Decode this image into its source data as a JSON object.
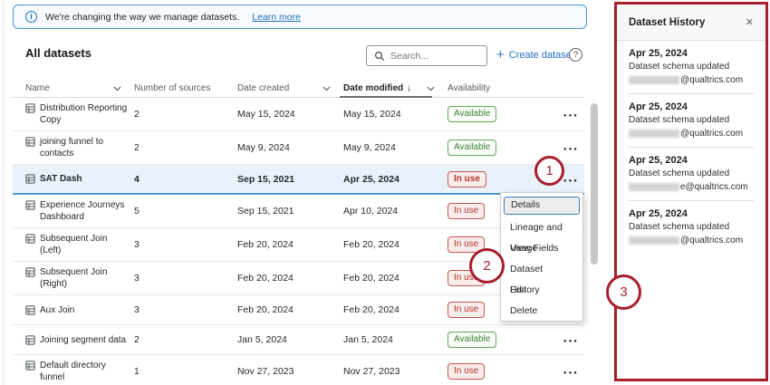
{
  "banner": {
    "message": "We're changing the way we manage datasets.",
    "link_label": "Learn more"
  },
  "toolbar": {
    "title": "All datasets",
    "search_placeholder": "Search...",
    "create_label": "Create dataset",
    "help_label": "?"
  },
  "table": {
    "columns": {
      "name": "Name",
      "sources": "Number of sources",
      "created": "Date created",
      "modified": "Date modified",
      "availability": "Availability"
    },
    "sort_arrow": "↓",
    "rows": [
      {
        "name": "Distribution Reporting Copy",
        "sources": "2",
        "created": "May 15, 2024",
        "modified": "May 15, 2024",
        "availability": "Available",
        "selected": false
      },
      {
        "name": "joining funnel to contacts",
        "sources": "2",
        "created": "May 9, 2024",
        "modified": "May 9, 2024",
        "availability": "Available",
        "selected": false
      },
      {
        "name": "SAT Dash",
        "sources": "4",
        "created": "Sep 15, 2021",
        "modified": "Apr 25, 2024",
        "availability": "In use",
        "selected": true
      },
      {
        "name": "Experience Journeys Dashboard",
        "sources": "5",
        "created": "Sep 15, 2021",
        "modified": "Apr 10, 2024",
        "availability": "In use",
        "selected": false
      },
      {
        "name": "Subsequent Join (Left)",
        "sources": "3",
        "created": "Feb 20, 2024",
        "modified": "Feb 20, 2024",
        "availability": "In use",
        "selected": false
      },
      {
        "name": "Subsequent Join (Right)",
        "sources": "3",
        "created": "Feb 20, 2024",
        "modified": "Feb 20, 2024",
        "availability": "In use",
        "selected": false
      },
      {
        "name": "Aux Join",
        "sources": "3",
        "created": "Feb 20, 2024",
        "modified": "Feb 20, 2024",
        "availability": "In use",
        "selected": false
      },
      {
        "name": "Joining segment data",
        "sources": "2",
        "created": "Jan 5, 2024",
        "modified": "Jan 5, 2024",
        "availability": "Available",
        "selected": false
      },
      {
        "name": "Default directory funnel",
        "sources": "1",
        "created": "Nov 27, 2023",
        "modified": "Nov 27, 2023",
        "availability": "In use",
        "selected": false
      }
    ]
  },
  "row_menu": {
    "items": [
      "Details",
      "Lineage and Usage",
      "View Fields",
      "Dataset History",
      "Edit",
      "Delete"
    ],
    "highlighted_item": "Details"
  },
  "history_panel": {
    "title": "Dataset History",
    "close_label": "✕",
    "entries": [
      {
        "date": "Apr 25, 2024",
        "action": "Dataset schema updated",
        "email_redacted": true,
        "email_suffix": "@qualtrics.com"
      },
      {
        "date": "Apr 25, 2024",
        "action": "Dataset schema updated",
        "email_redacted": true,
        "email_suffix": "@qualtrics.com"
      },
      {
        "date": "Apr 25, 2024",
        "action": "Dataset schema updated",
        "email_redacted": true,
        "email_suffix": "e@qualtrics.com"
      },
      {
        "date": "Apr 25, 2024",
        "action": "Dataset schema updated",
        "email_redacted": true,
        "email_suffix": "@qualtrics.com"
      }
    ]
  },
  "annotations": {
    "color": "#a91e2c",
    "circles": [
      {
        "label": "1"
      },
      {
        "label": "2"
      },
      {
        "label": "3"
      }
    ]
  },
  "colors": {
    "accent_blue": "#2170c0",
    "available_green": "#3a8132",
    "in_use_red": "#b3352e",
    "annotation_red": "#a91e2c",
    "selected_row_bg": "#e9f2fa"
  }
}
